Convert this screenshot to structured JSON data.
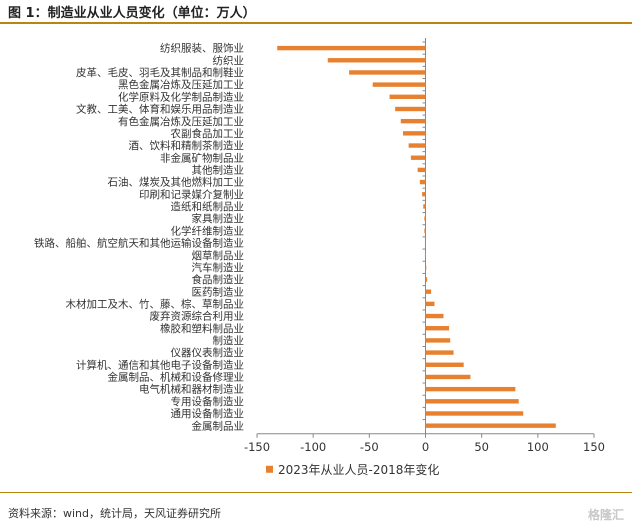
{
  "header": {
    "title": "图 1：制造业从业人员变化（单位：万人）"
  },
  "footer": {
    "source": "资料来源：wind，统计局，天风证券研究所",
    "watermark": "格隆汇"
  },
  "colors": {
    "bar": "#e8812f",
    "accent": "#b8860b",
    "axis": "#888888"
  },
  "chart_data": {
    "type": "bar",
    "orientation": "horizontal",
    "title": "",
    "xlabel": "",
    "ylabel": "",
    "xlim": [
      -150,
      150
    ],
    "xticks": [
      -150,
      -100,
      -50,
      0,
      50,
      100,
      150
    ],
    "legend_position": "bottom",
    "series": [
      {
        "name": "2023年从业人员-2018年变化",
        "categories": [
          "纺织服装、服饰业",
          "纺织业",
          "皮革、毛皮、羽毛及其制品和制鞋业",
          "黑色金属冶炼及压延加工业",
          "化学原料及化学制品制造业",
          "文教、工美、体育和娱乐用品制造业",
          "有色金属冶炼及压延加工业",
          "农副食品加工业",
          "酒、饮料和精制茶制造业",
          "非金属矿物制品业",
          "其他制造业",
          "石油、煤炭及其他燃料加工业",
          "印刷和记录媒介复制业",
          "造纸和纸制品业",
          "家具制造业",
          "化学纤维制造业",
          "铁路、船舶、航空航天和其他运输设备制造业",
          "烟草制品业",
          "汽车制造业",
          "食品制造业",
          "医药制造业",
          "木材加工及木、竹、藤、棕、草制品业",
          "废弃资源综合利用业",
          "橡胶和塑料制品业",
          "制造业",
          "仪器仪表制造业",
          "计算机、通信和其他电子设备制造业",
          "金属制品、机械和设备修理业",
          "电气机械和器材制造业",
          "专用设备制造业",
          "通用设备制造业",
          "金属制品业"
        ],
        "values": [
          -132,
          -87,
          -68,
          -47,
          -32,
          -27,
          -22,
          -20,
          -15,
          -13,
          -7,
          -5,
          -3,
          -2,
          -1,
          -1,
          -0.5,
          -0.5,
          0.5,
          1.5,
          5,
          8,
          16,
          21,
          22,
          25,
          34,
          40,
          80,
          83,
          87,
          116
        ]
      }
    ]
  }
}
